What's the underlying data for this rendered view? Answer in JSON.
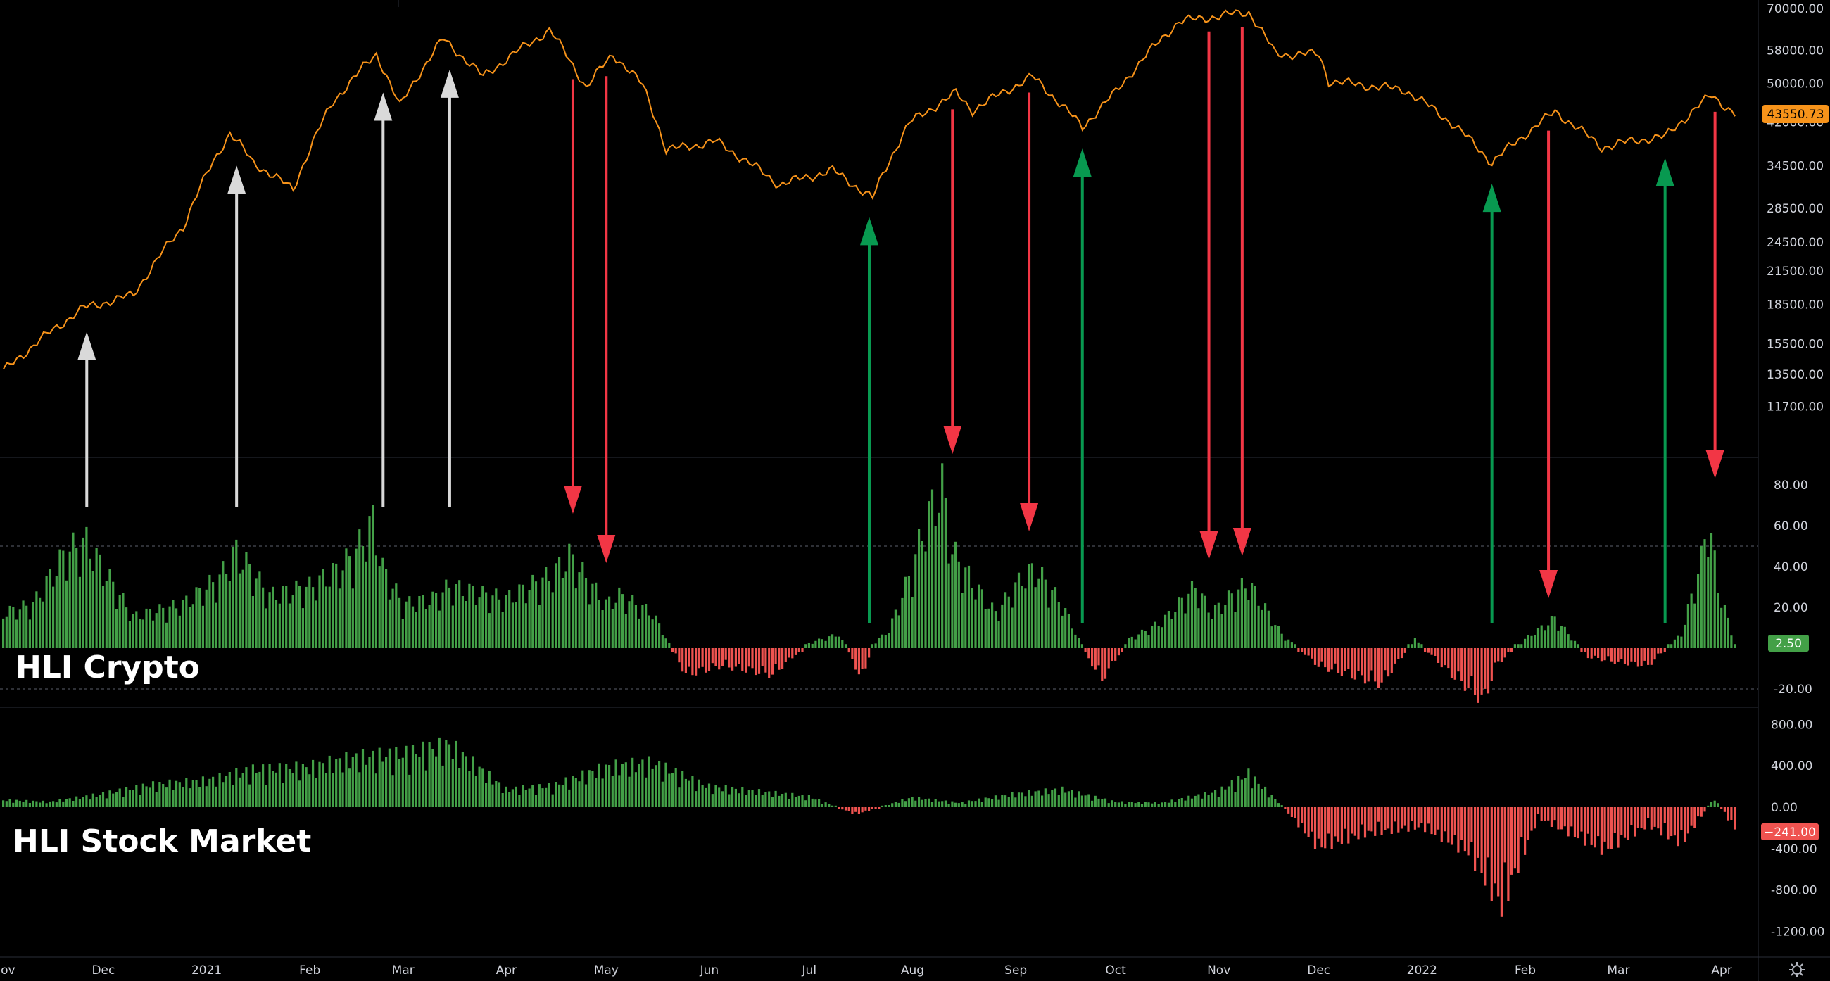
{
  "chart_data": [
    {
      "type": "line",
      "name": "btc-price-panel",
      "yscale": "log",
      "ylim": [
        9600,
        70000
      ],
      "yticks": [
        11700,
        13500,
        15500,
        18500,
        21500,
        24500,
        28500,
        34500,
        42000,
        50000,
        58000,
        70000
      ],
      "ytick_labels": [
        "11700.00",
        "13500.00",
        "15500.00",
        "18500.00",
        "21500.00",
        "24500.00",
        "28500.00",
        "34500.00",
        "42000.00",
        "50000.00",
        "58000.00",
        "70000.00"
      ],
      "last_value_label": "43550.73",
      "line_color": "#f7931a",
      "x": [
        "2020-11-01",
        "2020-11-25",
        "2020-12-10",
        "2020-12-25",
        "2021-01-08",
        "2021-01-15",
        "2021-01-27",
        "2021-02-08",
        "2021-02-21",
        "2021-02-28",
        "2021-03-13",
        "2021-03-25",
        "2021-04-14",
        "2021-04-25",
        "2021-05-03",
        "2021-05-12",
        "2021-05-19",
        "2021-06-03",
        "2021-06-22",
        "2021-07-08",
        "2021-07-20",
        "2021-07-31",
        "2021-08-14",
        "2021-08-19",
        "2021-09-06",
        "2021-09-21",
        "2021-10-01",
        "2021-10-20",
        "2021-11-10",
        "2021-11-18",
        "2021-12-01",
        "2021-12-04",
        "2021-12-27",
        "2022-01-10",
        "2022-01-22",
        "2022-02-10",
        "2022-02-24",
        "2022-03-07",
        "2022-03-15",
        "2022-03-29",
        "2022-04-05"
      ],
      "y": [
        13700,
        18200,
        19300,
        26300,
        40000,
        35000,
        31000,
        46000,
        57000,
        45000,
        61000,
        51500,
        63500,
        49000,
        57000,
        49500,
        37000,
        38500,
        31700,
        33800,
        29800,
        41800,
        47800,
        44300,
        51500,
        41000,
        48000,
        66000,
        68900,
        57000,
        57000,
        50500,
        48500,
        41800,
        35000,
        44000,
        37500,
        38800,
        39300,
        47400,
        43550
      ]
    },
    {
      "type": "bar",
      "name": "hli-crypto-panel",
      "title_label": "HLI Crypto",
      "ylim": [
        -30,
        95
      ],
      "yticks": [
        -20,
        20,
        40,
        60,
        80
      ],
      "ytick_labels": [
        "-20.00",
        "20.00",
        "40.00",
        "60.00",
        "80.00"
      ],
      "last_value_label": "2.50",
      "dashed_levels": [
        -20,
        50,
        75
      ],
      "positive_color": "#43a047",
      "negative_color": "#ef5350",
      "x": [
        "2020-11-01",
        "2020-11-10",
        "2020-11-20",
        "2020-11-26",
        "2020-12-10",
        "2020-12-25",
        "2021-01-05",
        "2021-01-10",
        "2021-01-20",
        "2021-02-01",
        "2021-02-10",
        "2021-02-15",
        "2021-02-20",
        "2021-02-23",
        "2021-03-01",
        "2021-03-10",
        "2021-03-15",
        "2021-04-01",
        "2021-04-15",
        "2021-04-20",
        "2021-05-01",
        "2021-05-05",
        "2021-05-15",
        "2021-05-25",
        "2021-06-05",
        "2021-06-20",
        "2021-07-01",
        "2021-07-10",
        "2021-07-17",
        "2021-07-20",
        "2021-07-25",
        "2021-08-01",
        "2021-08-05",
        "2021-08-10",
        "2021-08-13",
        "2021-08-20",
        "2021-08-26",
        "2021-09-03",
        "2021-09-07",
        "2021-09-15",
        "2021-09-22",
        "2021-09-27",
        "2021-10-05",
        "2021-10-15",
        "2021-10-25",
        "2021-10-30",
        "2021-11-05",
        "2021-11-10",
        "2021-11-20",
        "2021-12-01",
        "2021-12-10",
        "2021-12-20",
        "2021-12-30",
        "2022-01-10",
        "2022-01-20",
        "2022-01-23",
        "2022-02-01",
        "2022-02-10",
        "2022-02-20",
        "2022-03-01",
        "2022-03-10",
        "2022-03-20",
        "2022-03-26",
        "2022-03-28",
        "2022-03-31",
        "2022-04-05"
      ],
      "y": [
        20,
        25,
        55,
        60,
        18,
        25,
        40,
        55,
        30,
        35,
        45,
        55,
        72,
        45,
        25,
        28,
        35,
        28,
        42,
        52,
        25,
        30,
        20,
        -15,
        -10,
        -15,
        3,
        8,
        -18,
        2,
        10,
        45,
        72,
        92,
        55,
        35,
        20,
        40,
        45,
        25,
        -3,
        -18,
        5,
        15,
        35,
        20,
        30,
        37,
        8,
        -10,
        -15,
        -20,
        5,
        -15,
        -30,
        -10,
        5,
        17,
        -5,
        -8,
        -10,
        8,
        50,
        75,
        35,
        2.5
      ]
    },
    {
      "type": "bar",
      "name": "hli-stock-market-panel",
      "title_label": "HLI Stock Market",
      "ylim": [
        -1380,
        920
      ],
      "yticks": [
        -1200,
        -800,
        -400,
        0,
        400,
        800
      ],
      "ytick_labels": [
        "-1200.00",
        "-800.00",
        "-400.00",
        "0.00",
        "400.00",
        "800.00"
      ],
      "last_value_label": "−241.00",
      "positive_color": "#43a047",
      "negative_color": "#ef5350",
      "x": [
        "2020-11-01",
        "2020-11-15",
        "2020-12-01",
        "2020-12-15",
        "2021-01-01",
        "2021-01-15",
        "2021-02-01",
        "2021-02-15",
        "2021-03-01",
        "2021-03-15",
        "2021-04-01",
        "2021-04-15",
        "2021-05-01",
        "2021-05-15",
        "2021-06-01",
        "2021-06-15",
        "2021-07-01",
        "2021-07-15",
        "2021-08-01",
        "2021-08-15",
        "2021-09-01",
        "2021-09-15",
        "2021-10-01",
        "2021-10-15",
        "2021-11-01",
        "2021-11-10",
        "2021-11-20",
        "2021-12-01",
        "2021-12-15",
        "2022-01-01",
        "2022-01-15",
        "2022-01-25",
        "2022-02-05",
        "2022-02-15",
        "2022-02-25",
        "2022-03-10",
        "2022-03-20",
        "2022-03-30",
        "2022-04-05"
      ],
      "y": [
        80,
        60,
        150,
        250,
        300,
        420,
        450,
        560,
        600,
        700,
        200,
        240,
        450,
        500,
        230,
        180,
        120,
        -80,
        110,
        50,
        150,
        200,
        60,
        50,
        180,
        380,
        20,
        -450,
        -300,
        -220,
        -500,
        -1100,
        -120,
        -300,
        -480,
        -200,
        -400,
        100,
        -241
      ]
    }
  ],
  "annotations": {
    "grey_arrows_x": [
      "2020-11-26",
      "2021-01-10",
      "2021-02-23",
      "2021-03-15"
    ],
    "red_arrows_x": [
      "2021-04-21",
      "2021-05-01",
      "2021-08-13",
      "2021-09-05",
      "2021-10-29",
      "2021-11-08",
      "2022-02-08",
      "2022-03-30"
    ],
    "green_arrows_x": [
      "2021-07-19",
      "2021-09-21",
      "2022-01-22",
      "2022-03-15"
    ]
  },
  "time_axis": {
    "ticks": [
      {
        "date": "2020-11-01",
        "label": "Nov"
      },
      {
        "date": "2020-12-01",
        "label": "Dec"
      },
      {
        "date": "2021-01-01",
        "label": "2021"
      },
      {
        "date": "2021-02-01",
        "label": "Feb"
      },
      {
        "date": "2021-03-01",
        "label": "Mar"
      },
      {
        "date": "2021-04-01",
        "label": "Apr"
      },
      {
        "date": "2021-05-01",
        "label": "May"
      },
      {
        "date": "2021-06-01",
        "label": "Jun"
      },
      {
        "date": "2021-07-01",
        "label": "Jul"
      },
      {
        "date": "2021-08-01",
        "label": "Aug"
      },
      {
        "date": "2021-09-01",
        "label": "Sep"
      },
      {
        "date": "2021-10-01",
        "label": "Oct"
      },
      {
        "date": "2021-11-01",
        "label": "Nov"
      },
      {
        "date": "2021-12-01",
        "label": "Dec"
      },
      {
        "date": "2022-01-01",
        "label": "2022"
      },
      {
        "date": "2022-02-01",
        "label": "Feb"
      },
      {
        "date": "2022-03-01",
        "label": "Mar"
      },
      {
        "date": "2022-04-01",
        "label": "Apr"
      }
    ]
  },
  "colors": {
    "background": "#000000",
    "axis_text": "#d1d4dc",
    "price_line": "#f7931a",
    "up_arrow_grey": "#d9d9d9",
    "up_arrow_green": "#089950",
    "down_arrow_red": "#f23645",
    "price_badge": "#f7931a",
    "crypto_badge": "#43a047",
    "stock_badge": "#ef5350"
  },
  "icons": {
    "settings": "gear-icon"
  }
}
